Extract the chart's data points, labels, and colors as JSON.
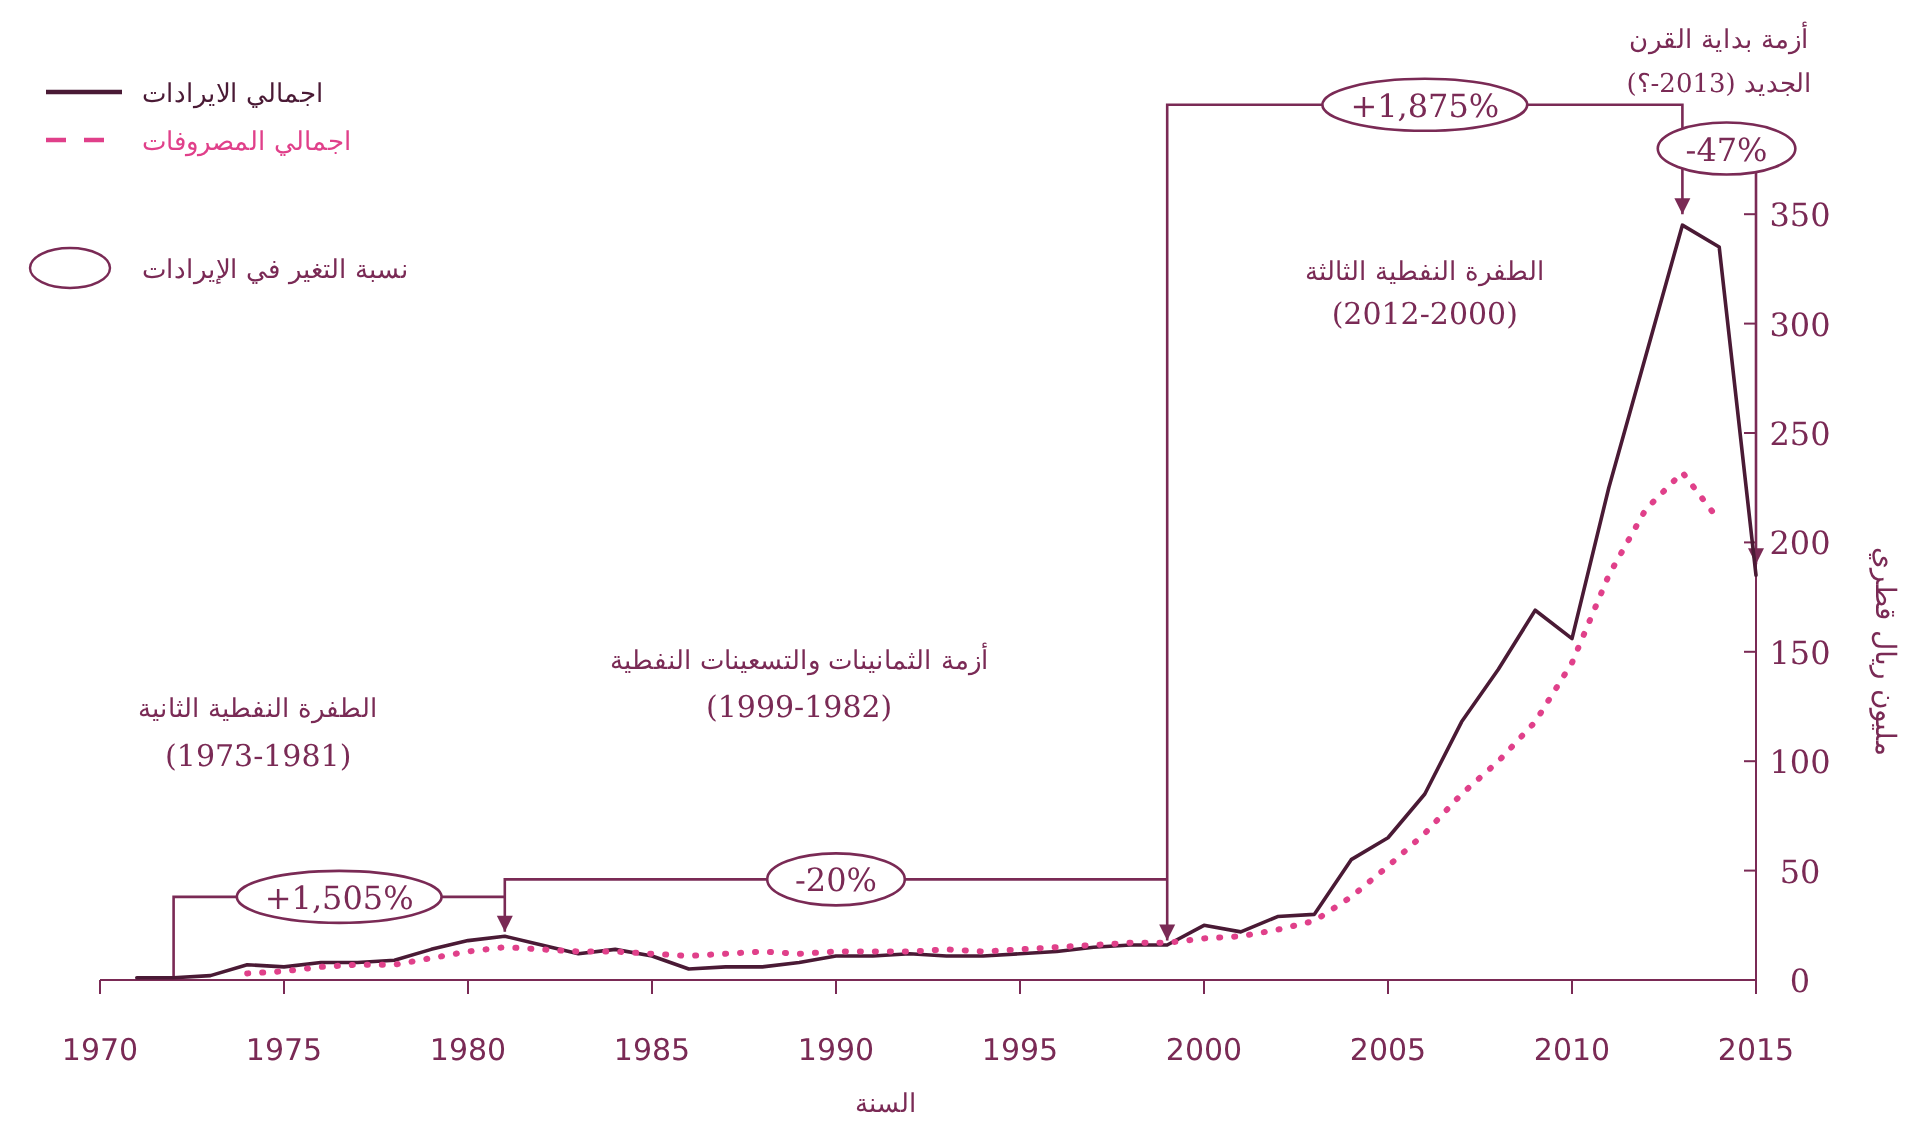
{
  "chart_data": {
    "type": "line",
    "xlabel": "السنة",
    "ylabel": "مليون ريال قطري",
    "x": [
      1971,
      1972,
      1973,
      1974,
      1975,
      1976,
      1977,
      1978,
      1979,
      1980,
      1981,
      1982,
      1983,
      1984,
      1985,
      1986,
      1987,
      1988,
      1989,
      1990,
      1991,
      1992,
      1993,
      1994,
      1995,
      1996,
      1997,
      1998,
      1999,
      2000,
      2001,
      2002,
      2003,
      2004,
      2005,
      2006,
      2007,
      2008,
      2009,
      2010,
      2011,
      2012,
      2013,
      2014,
      2015
    ],
    "series": [
      {
        "name": "اجمالي الايرادات",
        "color": "#4a1a35",
        "line_style": "solid",
        "values": [
          1,
          1,
          2,
          7,
          6,
          8,
          8,
          9,
          14,
          18,
          20,
          16,
          12,
          14,
          11,
          5,
          6,
          6,
          8,
          11,
          11,
          12,
          11,
          11,
          12,
          13,
          15,
          16,
          16,
          25,
          22,
          29,
          30,
          55,
          65,
          85,
          118,
          142,
          169,
          156,
          225,
          285,
          345,
          335,
          185
        ]
      },
      {
        "name": "اجمالي المصروفات",
        "color": "#e0408a",
        "line_style": "dotted",
        "values": [
          null,
          null,
          null,
          3,
          4,
          6,
          7,
          7,
          10,
          13,
          15,
          14,
          13,
          13,
          12,
          11,
          12,
          13,
          12,
          13,
          13,
          13,
          14,
          13,
          14,
          15,
          16,
          17,
          17,
          19,
          20,
          23,
          27,
          38,
          52,
          67,
          85,
          100,
          118,
          145,
          185,
          215,
          232,
          210,
          null
        ]
      }
    ],
    "xlim": [
      1970,
      2015
    ],
    "xticks": [
      1970,
      1975,
      1980,
      1985,
      1990,
      1995,
      2000,
      2005,
      2010,
      2015
    ],
    "ylim": [
      0,
      365
    ],
    "yticks": [
      0,
      50,
      100,
      150,
      200,
      250,
      300,
      350
    ],
    "grid": false,
    "legend": "top left",
    "annotations": [
      "نسبة التغير في الإيرادات",
      "+1,505%",
      "-20%",
      "+1,875%",
      "-47%",
      "الطفرة النفطية الثانية",
      "(1973-1981)",
      "أزمة الثمانينات والتسعينات النفطية",
      "(1999-1982)",
      "الطفرة النفطية الثالثة",
      "(2012-2000)",
      "أزمة بداية القرن",
      "الجديد (2013-؟)"
    ]
  }
}
